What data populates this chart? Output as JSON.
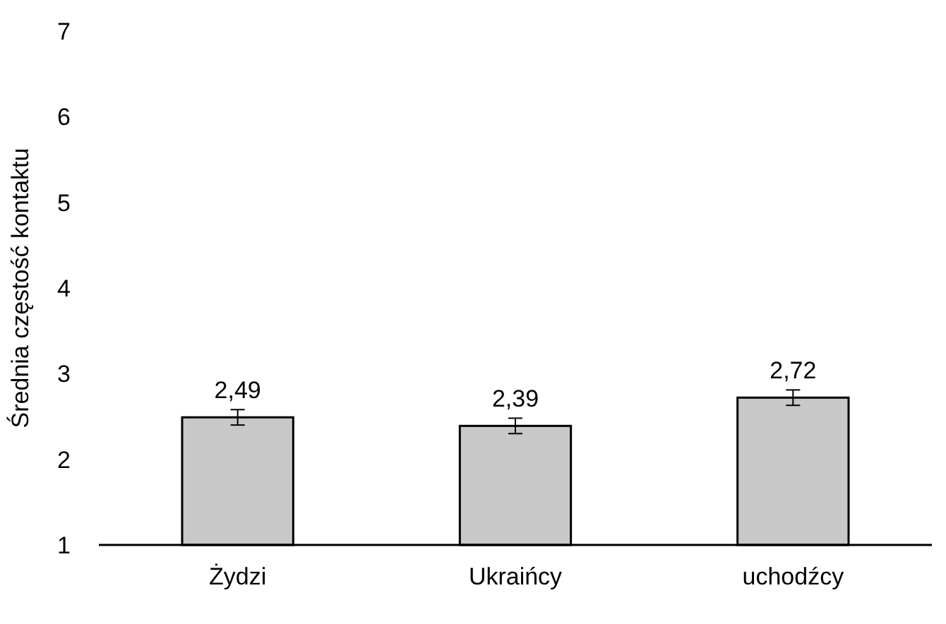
{
  "chart_data": {
    "type": "bar",
    "ylabel": "Średnia częstość kontaktu",
    "categories": [
      "Żydzi",
      "Ukraińcy",
      "uchodźcy"
    ],
    "values": [
      2.49,
      2.39,
      2.72
    ],
    "value_labels": [
      "2,49",
      "2,39",
      "2,72"
    ],
    "errors": [
      0.09,
      0.09,
      0.09
    ],
    "color": "#c8c8c8",
    "ylim": [
      1,
      7
    ],
    "yticks": [
      1,
      2,
      3,
      4,
      5,
      6,
      7
    ],
    "grid": false
  }
}
